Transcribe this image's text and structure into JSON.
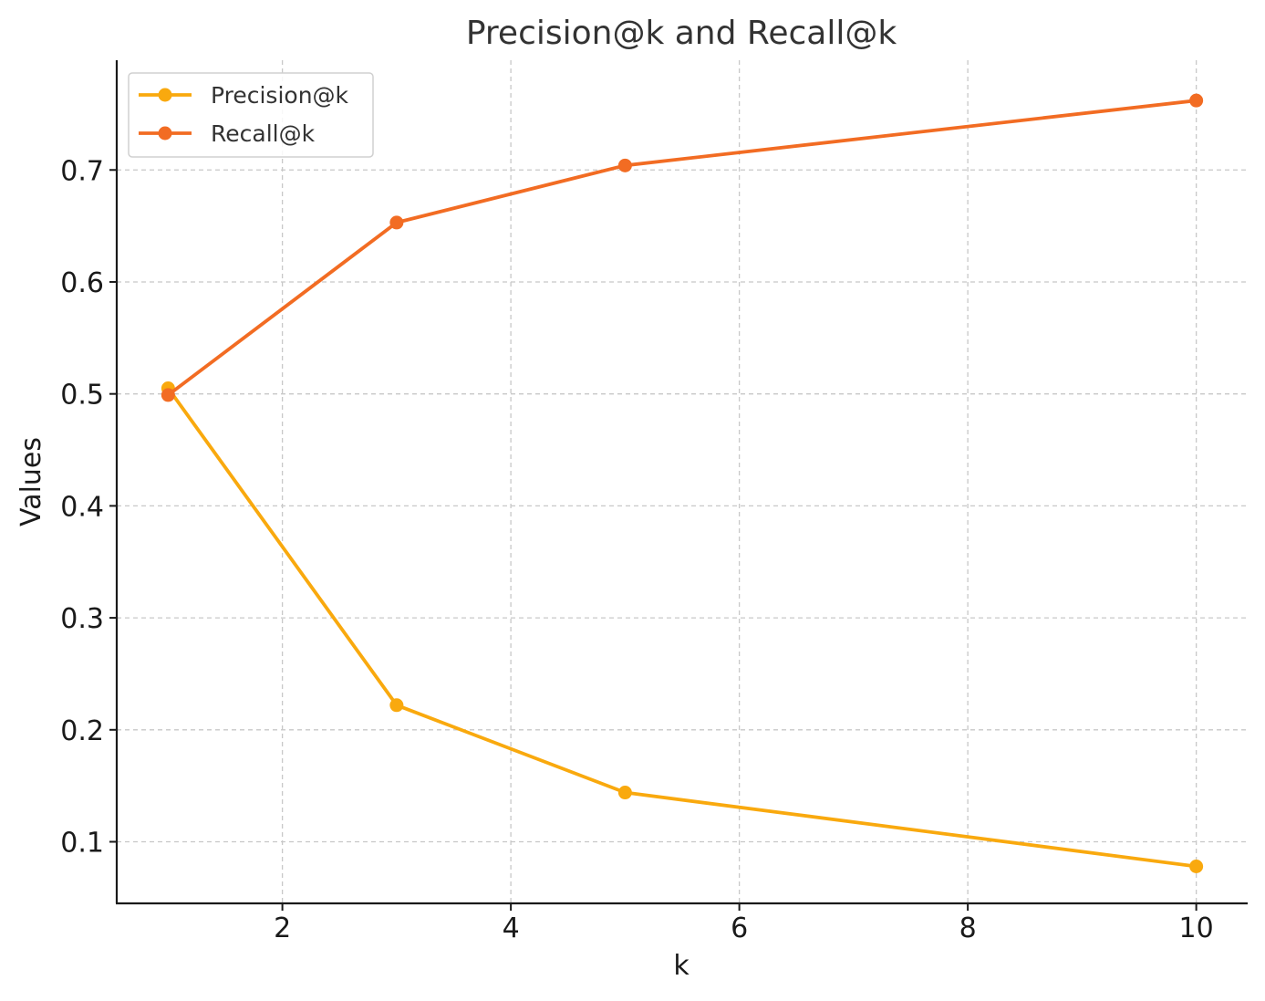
{
  "chart_data": {
    "type": "line",
    "title": "Precision@k and Recall@k",
    "xlabel": "k",
    "ylabel": "Values",
    "xlim": [
      0.55,
      10.45
    ],
    "ylim": [
      0.045,
      0.798
    ],
    "xticks": [
      2,
      4,
      6,
      8,
      10
    ],
    "xtick_labels": [
      "2",
      "4",
      "6",
      "8",
      "10"
    ],
    "yticks": [
      0.1,
      0.2,
      0.3,
      0.4,
      0.5,
      0.6,
      0.7
    ],
    "ytick_labels": [
      "0.1",
      "0.2",
      "0.3",
      "0.4",
      "0.5",
      "0.6",
      "0.7"
    ],
    "grid": true,
    "legend_position": "top-left",
    "x": [
      1,
      3,
      5,
      10
    ],
    "series": [
      {
        "name": "Precision@k",
        "color": "#F9A90E",
        "values": [
          0.505,
          0.222,
          0.144,
          0.078
        ]
      },
      {
        "name": "Recall@k",
        "color": "#F26C23",
        "values": [
          0.499,
          0.653,
          0.704,
          0.762
        ]
      }
    ]
  }
}
